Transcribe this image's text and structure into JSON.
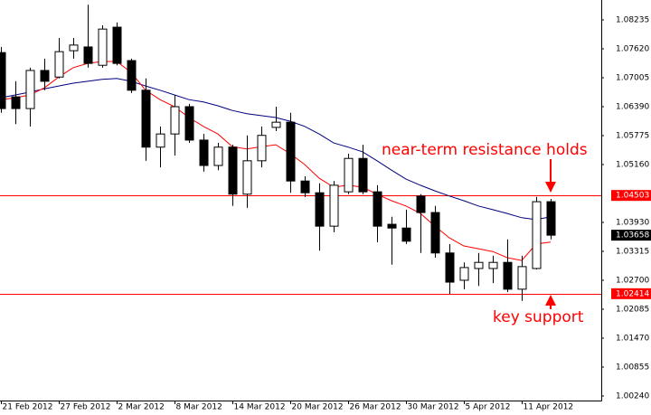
{
  "chart_data": {
    "type": "candlestick",
    "categories": [
      "21 Feb 2012",
      null,
      null,
      null,
      "27 Feb 2012",
      null,
      null,
      null,
      "2 Mar 2012",
      null,
      null,
      null,
      "8 Mar 2012",
      null,
      null,
      null,
      "14 Mar 2012",
      null,
      null,
      null,
      "20 Mar 2012",
      null,
      null,
      null,
      "26 Mar 2012",
      null,
      null,
      null,
      "30 Mar 2012",
      null,
      null,
      null,
      "5 Apr 2012",
      null,
      null,
      null,
      "11 Apr 2012",
      null,
      null
    ],
    "open": [
      1.0754,
      1.066,
      1.0635,
      1.0716,
      1.0702,
      1.0758,
      1.0766,
      1.0727,
      1.0808,
      1.0737,
      1.0674,
      1.0553,
      1.0581,
      1.0639,
      1.0568,
      1.0514,
      1.0553,
      1.0453,
      1.0524,
      1.0595,
      1.0606,
      1.0481,
      1.0456,
      1.0385,
      1.0458,
      1.0529,
      1.0458,
      1.0389,
      1.0381,
      1.0449,
      1.0414,
      1.0328,
      1.027,
      1.0295,
      1.0295,
      1.0308,
      1.0251,
      1.0295,
      1.0437
    ],
    "high": [
      1.0766,
      1.0693,
      1.0722,
      1.0741,
      1.0785,
      1.0785,
      1.0856,
      1.0812,
      1.0818,
      1.0741,
      1.0699,
      1.0597,
      1.0664,
      1.0645,
      1.0581,
      1.0562,
      1.0558,
      1.0578,
      1.0597,
      1.0639,
      1.0626,
      1.0491,
      1.0476,
      1.0481,
      1.0539,
      1.0558,
      1.0472,
      1.0405,
      1.042,
      1.0453,
      1.0428,
      1.0347,
      1.0308,
      1.0328,
      1.0322,
      1.0357,
      1.0322,
      1.0447,
      1.0443
    ],
    "low": [
      1.0626,
      1.0602,
      1.0597,
      1.0674,
      1.0699,
      1.0741,
      1.0722,
      1.0722,
      1.0727,
      1.0668,
      1.0524,
      1.051,
      1.0535,
      1.0562,
      1.0501,
      1.0504,
      1.0428,
      1.0424,
      1.051,
      1.0587,
      1.0456,
      1.0447,
      1.0333,
      1.0372,
      1.0453,
      1.0453,
      1.0351,
      1.0303,
      1.0347,
      1.0328,
      1.0318,
      1.0241,
      1.0251,
      1.0258,
      1.0264,
      1.0245,
      1.0226,
      1.0293,
      1.0357
    ],
    "close": [
      1.0635,
      1.0635,
      1.0716,
      1.0693,
      1.0756,
      1.077,
      1.0731,
      1.0804,
      1.0731,
      1.0674,
      1.0553,
      1.0581,
      1.0639,
      1.0568,
      1.0514,
      1.0553,
      1.0453,
      1.0524,
      1.0578,
      1.0606,
      1.0481,
      1.0456,
      1.0385,
      1.0472,
      1.0529,
      1.0458,
      1.0385,
      1.0381,
      1.0353,
      1.0414,
      1.0328,
      1.0266,
      1.0297,
      1.0308,
      1.0308,
      1.0251,
      1.0299,
      1.0437,
      1.03658
    ],
    "up_color": "#ffffff",
    "down_color": "#000000",
    "moving_averages": [
      {
        "color": "#000080",
        "values": [
          1.0658,
          1.0664,
          1.067,
          1.0677,
          1.0683,
          1.0689,
          1.0693,
          1.0697,
          1.0699,
          1.0693,
          1.0683,
          1.0674,
          1.0664,
          1.0654,
          1.0649,
          1.0641,
          1.0631,
          1.0624,
          1.062,
          1.0616,
          1.0608,
          1.0597,
          1.0581,
          1.0562,
          1.0553,
          1.0543,
          1.0524,
          1.0504,
          1.0485,
          1.0472,
          1.046,
          1.0449,
          1.0439,
          1.0428,
          1.042,
          1.0412,
          1.0403,
          1.0399,
          1.0405
        ]
      },
      {
        "color": "#ff0000",
        "values": [
          1.0654,
          1.0658,
          1.0664,
          1.0679,
          1.0702,
          1.0722,
          1.0731,
          1.0735,
          1.0735,
          1.0712,
          1.0674,
          1.0654,
          1.0639,
          1.0616,
          1.0597,
          1.0581,
          1.0554,
          1.0549,
          1.0554,
          1.0558,
          1.0539,
          1.0516,
          1.0487,
          1.0468,
          1.0472,
          1.0468,
          1.0453,
          1.0439,
          1.0428,
          1.0412,
          1.0385,
          1.036,
          1.0343,
          1.0337,
          1.0331,
          1.0318,
          1.0312,
          1.0347,
          1.0351
        ]
      }
    ],
    "hlines": [
      1.04503,
      1.02414
    ],
    "hline_color": "#ff0000",
    "ylim": [
      1.00143,
      1.08658
    ],
    "yticks": [
      1.08235,
      {
        "value": 1.0762,
        "label": "1.07620"
      },
      1.07005,
      {
        "value": 1.0639,
        "label": "1.06390"
      },
      1.05775,
      {
        "value": 1.0516,
        "label": "1.05160"
      },
      {
        "value": 1.0393,
        "label": "1.03930"
      },
      1.03315,
      {
        "value": 1.027,
        "label": "1.02700"
      },
      1.02085,
      {
        "value": 1.0147,
        "label": "1.01470"
      },
      1.00855,
      {
        "value": 1.0024,
        "label": "1.00240"
      }
    ],
    "annotations": [
      "near-term resistance holds",
      "key support"
    ]
  }
}
